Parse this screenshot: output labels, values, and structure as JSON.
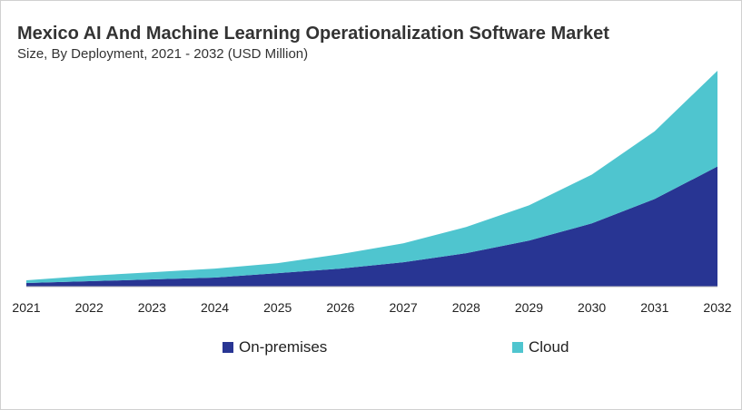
{
  "chart_data": {
    "type": "area",
    "stacked": true,
    "title": "Mexico AI And Machine Learning Operationalization Software Market",
    "subtitle": "Size, By Deployment, 2021 - 2032 (USD Million)",
    "categories": [
      "2021",
      "2022",
      "2023",
      "2024",
      "2025",
      "2026",
      "2027",
      "2028",
      "2029",
      "2030",
      "2031",
      "2032"
    ],
    "series": [
      {
        "name": "On-premises",
        "color": "#283593",
        "values": [
          4,
          6,
          8,
          10,
          15,
          20,
          27,
          37,
          51,
          70,
          97,
          133
        ]
      },
      {
        "name": "Cloud",
        "color": "#4fc5cf",
        "values": [
          3,
          6,
          8,
          10,
          11,
          16,
          21,
          29,
          39,
          54,
          75,
          106
        ]
      }
    ],
    "ylim": [
      0,
      240
    ],
    "y_axis_shown": false,
    "grid": false,
    "legend_placement": "bottom"
  }
}
